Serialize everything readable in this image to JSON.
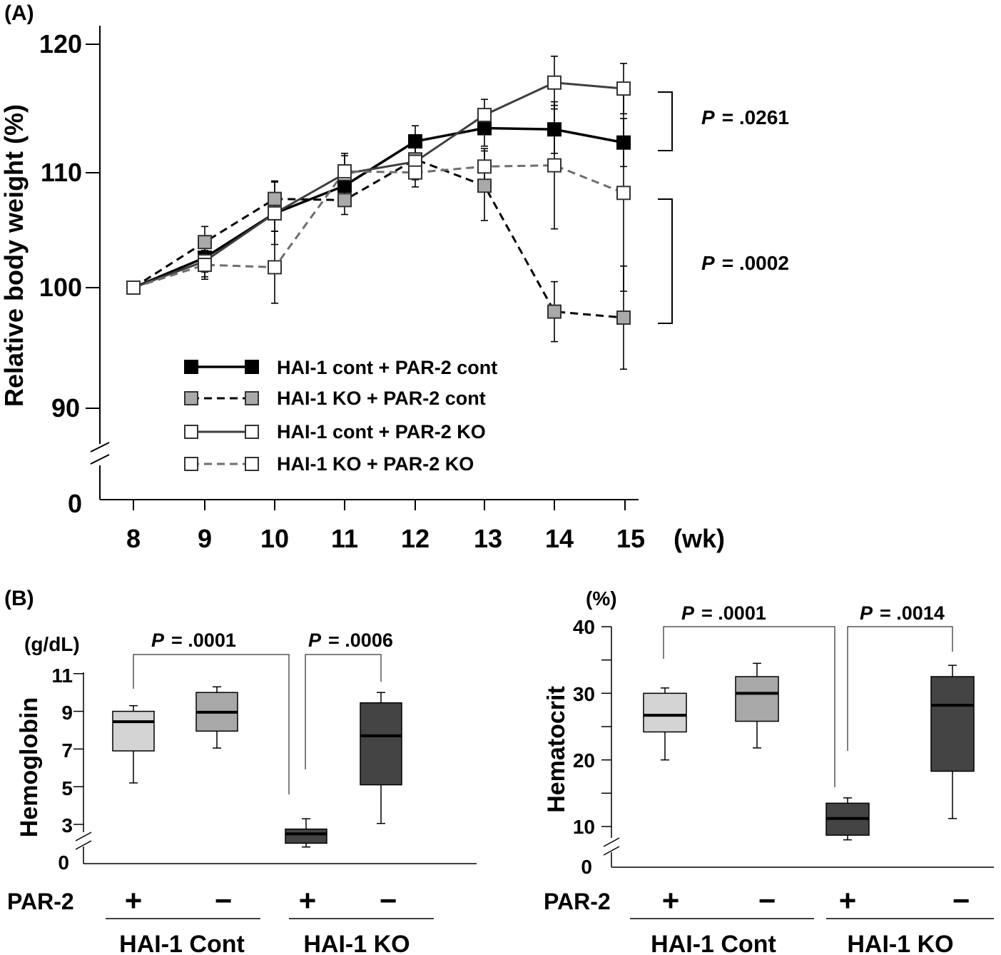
{
  "colors": {
    "black": "#000000",
    "dark_gray": "#3f3f3f",
    "mid_gray": "#6e6e6e",
    "light_box": "#d4d4d4",
    "medium_box": "#a8a8a8",
    "dark_box": "#444444",
    "marker_gray": "#a9a9a9",
    "marker_white": "#ffffff"
  },
  "chart_data": [
    {
      "panel_label": "(A)",
      "type": "line",
      "ylabel": "Relative body weight (%)",
      "x_unit": "(wk)",
      "x": [
        8,
        9,
        10,
        11,
        12,
        13,
        14,
        15
      ],
      "x_tick_labels": [
        "8",
        "9",
        "10",
        "11",
        "12",
        "13",
        "14",
        "15"
      ],
      "y_tick_labels": [
        "0",
        "90",
        "100",
        "110",
        "120"
      ],
      "ylim": [
        88,
        121
      ],
      "axis_break": "between 0 and 90",
      "series": [
        {
          "name": "HAI-1 cont + PAR-2 cont",
          "line": "solid",
          "line_color": "#000000",
          "marker_fill": "#000000",
          "values": [
            100,
            102.5,
            106.2,
            108.5,
            112.2,
            113.3,
            113.2,
            112.1
          ],
          "err": [
            0,
            1.2,
            1.5,
            1.5,
            1.3,
            1.5,
            2.0,
            2.0
          ]
        },
        {
          "name": "HAI-1 KO + PAR-2 cont",
          "line": "dashed",
          "line_color": "#000000",
          "marker_fill": "#a9a9a9",
          "values": [
            100,
            103.8,
            107.4,
            107.3,
            110.7,
            108.5,
            98.0,
            97.5
          ],
          "err": [
            0,
            1.3,
            1.5,
            1.2,
            1.3,
            2.9,
            2.5,
            4.3
          ]
        },
        {
          "name": "HAI-1 cont + PAR-2 KO",
          "line": "solid",
          "line_color": "#3f3f3f",
          "marker_fill": "#ffffff",
          "values": [
            100,
            102.2,
            106.2,
            109.5,
            110.5,
            114.4,
            117.1,
            116.6
          ],
          "err": [
            0,
            1.3,
            2.6,
            1.7,
            1.5,
            1.3,
            2.2,
            2.1
          ]
        },
        {
          "name": "HAI-1 KO + PAR-2 KO",
          "line": "dashed",
          "line_color": "#6e6e6e",
          "marker_fill": "#ffffff",
          "values": [
            100,
            101.9,
            101.7,
            109.7,
            109.6,
            110.1,
            110.2,
            107.9
          ],
          "err": [
            0,
            1.2,
            3.0,
            1.3,
            1.2,
            1.5,
            5.3,
            8.2
          ]
        }
      ],
      "annotations": [
        {
          "p_label": "P",
          "p_value": "= .0261"
        },
        {
          "p_label": "P",
          "p_value": "= .0002"
        }
      ],
      "legend_placement": "lower-middle",
      "grid": false
    },
    {
      "panel_label": "(B)",
      "type": "box",
      "unit": "(g/dL)",
      "ylabel": "Hemoglobin",
      "y_tick_labels": [
        "0",
        "3",
        "5",
        "7",
        "9",
        "11"
      ],
      "ylim": [
        1.5,
        11
      ],
      "axis_break": "between 0 and 3",
      "row_label": "PAR-2",
      "categories": [
        "+",
        "−",
        "+",
        "−"
      ],
      "groups": [
        "HAI-1 Cont",
        "HAI-1 KO"
      ],
      "boxes": [
        {
          "whisker_low": 5.2,
          "q1": 6.9,
          "median": 8.45,
          "q3": 9.0,
          "whisker_high": 9.3,
          "fill": "#d4d4d4"
        },
        {
          "whisker_low": 7.05,
          "q1": 7.95,
          "median": 8.95,
          "q3": 10.0,
          "whisker_high": 10.3,
          "fill": "#a8a8a8"
        },
        {
          "whisker_low": 1.8,
          "q1": 2.0,
          "median": 2.5,
          "q3": 2.75,
          "whisker_high": 3.3,
          "fill": "#444444"
        },
        {
          "whisker_low": 3.05,
          "q1": 5.1,
          "median": 7.7,
          "q3": 9.45,
          "whisker_high": 10.0,
          "fill": "#444444"
        }
      ],
      "annotations": [
        {
          "p_label": "P",
          "p_value": "= .0001"
        },
        {
          "p_label": "P",
          "p_value": "= .0006"
        }
      ]
    },
    {
      "type": "box",
      "unit": "(%)",
      "ylabel": "Hematocrit",
      "y_tick_labels": [
        "0",
        "10",
        "20",
        "30",
        "40"
      ],
      "ylim": [
        7,
        40
      ],
      "axis_break": "between 0 and 10",
      "row_label": "PAR-2",
      "categories": [
        "+",
        "−",
        "+",
        "−"
      ],
      "groups": [
        "HAI-1 Cont",
        "HAI-1 KO"
      ],
      "boxes": [
        {
          "whisker_low": 20.0,
          "q1": 24.2,
          "median": 26.7,
          "q3": 30.0,
          "whisker_high": 30.8,
          "fill": "#d4d4d4"
        },
        {
          "whisker_low": 21.8,
          "q1": 25.8,
          "median": 30.0,
          "q3": 32.5,
          "whisker_high": 34.5,
          "fill": "#a8a8a8"
        },
        {
          "whisker_low": 8.0,
          "q1": 8.7,
          "median": 11.2,
          "q3": 13.5,
          "whisker_high": 14.3,
          "fill": "#444444"
        },
        {
          "whisker_low": 11.2,
          "q1": 18.3,
          "median": 28.2,
          "q3": 32.5,
          "whisker_high": 34.2,
          "fill": "#444444"
        }
      ],
      "annotations": [
        {
          "p_label": "P",
          "p_value": "= .0001"
        },
        {
          "p_label": "P",
          "p_value": "= .0014"
        }
      ]
    }
  ]
}
